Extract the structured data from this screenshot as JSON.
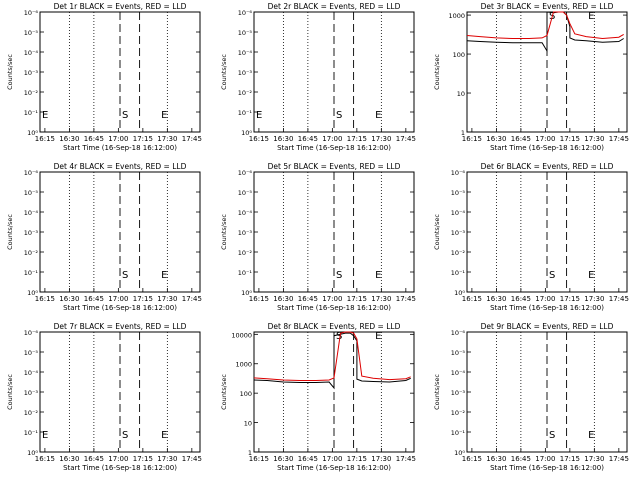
{
  "chart_data": [
    {
      "type": "line",
      "title": "Det 1r BLACK = Events, RED = LLD",
      "xlabel": "Start Time (16-Sep-18 16:12:00)",
      "ylabel": "Counts/sec",
      "xlim": [
        "16:12",
        "17:50"
      ],
      "ylim": [
        0.8,
        1.2
      ],
      "y_scale": "log",
      "y_ticks": [
        "10⁰",
        "10⁻¹",
        "10⁻²",
        "10⁻³",
        "10⁻⁴",
        "10⁻⁵",
        "10⁻⁶"
      ],
      "x_ticks": [
        "16:15",
        "16:30",
        "16:45",
        "17:00",
        "17:15",
        "17:30",
        "17:45"
      ],
      "markers": [
        {
          "label": "E",
          "time": "16:12"
        },
        {
          "label": "S",
          "time": "17:01"
        },
        {
          "label": "E",
          "time": "17:25"
        }
      ],
      "series": []
    },
    {
      "type": "line",
      "title": "Det 2r BLACK = Events, RED = LLD",
      "xlabel": "Start Time (16-Sep-18 16:12:00)",
      "ylabel": "Counts/sec",
      "xlim": [
        "16:12",
        "17:50"
      ],
      "ylim": [
        0.8,
        1.2
      ],
      "y_scale": "log",
      "y_ticks": [
        "10⁰",
        "10⁻¹",
        "10⁻²",
        "10⁻³",
        "10⁻⁴",
        "10⁻⁵",
        "10⁻⁶"
      ],
      "x_ticks": [
        "16:15",
        "16:30",
        "16:45",
        "17:00",
        "17:15",
        "17:30",
        "17:45"
      ],
      "markers": [
        {
          "label": "E",
          "time": "16:12"
        },
        {
          "label": "S",
          "time": "17:01"
        },
        {
          "label": "E",
          "time": "17:25"
        }
      ],
      "series": []
    },
    {
      "type": "line",
      "title": "Det 3r BLACK = Events, RED = LLD",
      "xlabel": "Start Time (16-Sep-18 16:12:00)",
      "ylabel": "Counts/sec",
      "xlim": [
        "16:12",
        "17:50"
      ],
      "ylim": [
        1,
        1200
      ],
      "y_scale": "log",
      "y_ticks": [
        "1",
        "10",
        "100",
        "1000"
      ],
      "x_ticks": [
        "16:15",
        "16:30",
        "16:45",
        "17:00",
        "17:15",
        "17:30",
        "17:45"
      ],
      "markers": [
        {
          "label": "S",
          "time": "17:01"
        },
        {
          "label": "E",
          "time": "17:25"
        }
      ],
      "series": [
        {
          "name": "Events",
          "color": "#000000",
          "x": [
            "16:12",
            "16:20",
            "16:30",
            "16:40",
            "16:50",
            "16:58",
            "17:01",
            "17:01",
            "17:05",
            "17:08",
            "17:11",
            "17:13",
            "17:15",
            "17:15",
            "17:18",
            "17:25",
            "17:35",
            "17:45",
            "17:48"
          ],
          "values": [
            220,
            210,
            200,
            195,
            195,
            195,
            120,
            1200,
            1150,
            1200,
            1200,
            1000,
            500,
            260,
            230,
            220,
            200,
            210,
            250
          ]
        },
        {
          "name": "LLD",
          "color": "#dd0000",
          "x": [
            "16:12",
            "16:20",
            "16:30",
            "16:40",
            "16:50",
            "16:58",
            "17:01",
            "17:05",
            "17:08",
            "17:11",
            "17:13",
            "17:15",
            "17:18",
            "17:25",
            "17:35",
            "17:45",
            "17:48"
          ],
          "values": [
            300,
            280,
            260,
            250,
            250,
            260,
            300,
            1200,
            1200,
            1200,
            1000,
            600,
            330,
            280,
            250,
            270,
            320
          ]
        }
      ]
    },
    {
      "type": "line",
      "title": "Det 4r BLACK = Events, RED = LLD",
      "xlabel": "Start Time (16-Sep-18 16:12:00)",
      "ylabel": "Counts/sec",
      "xlim": [
        "16:12",
        "17:50"
      ],
      "ylim": [
        0.8,
        1.2
      ],
      "y_scale": "log",
      "y_ticks": [
        "10⁰",
        "10⁻¹",
        "10⁻²",
        "10⁻³",
        "10⁻⁴",
        "10⁻⁵",
        "10⁻⁶"
      ],
      "x_ticks": [
        "16:15",
        "16:30",
        "16:45",
        "17:00",
        "17:15",
        "17:30",
        "17:45"
      ],
      "markers": [
        {
          "label": "S",
          "time": "17:01"
        },
        {
          "label": "E",
          "time": "17:25"
        }
      ],
      "series": []
    },
    {
      "type": "line",
      "title": "Det 5r BLACK = Events, RED = LLD",
      "xlabel": "Start Time (16-Sep-18 16:12:00)",
      "ylabel": "Counts/sec",
      "xlim": [
        "16:12",
        "17:50"
      ],
      "ylim": [
        0.8,
        1.2
      ],
      "y_scale": "log",
      "y_ticks": [
        "10⁰",
        "10⁻¹",
        "10⁻²",
        "10⁻³",
        "10⁻⁴",
        "10⁻⁵",
        "10⁻⁶"
      ],
      "x_ticks": [
        "16:15",
        "16:30",
        "16:45",
        "17:00",
        "17:15",
        "17:30",
        "17:45"
      ],
      "markers": [
        {
          "label": "S",
          "time": "17:01"
        },
        {
          "label": "E",
          "time": "17:25"
        }
      ],
      "series": []
    },
    {
      "type": "line",
      "title": "Det 6r BLACK = Events, RED = LLD",
      "xlabel": "Start Time (16-Sep-18 16:12:00)",
      "ylabel": "Counts/sec",
      "xlim": [
        "16:12",
        "17:50"
      ],
      "ylim": [
        0.8,
        1.2
      ],
      "y_scale": "log",
      "y_ticks": [
        "10⁰",
        "10⁻¹",
        "10⁻²",
        "10⁻³",
        "10⁻⁴",
        "10⁻⁵",
        "10⁻⁶"
      ],
      "x_ticks": [
        "16:15",
        "16:30",
        "16:45",
        "17:00",
        "17:15",
        "17:30",
        "17:45"
      ],
      "markers": [
        {
          "label": "S",
          "time": "17:01"
        },
        {
          "label": "E",
          "time": "17:25"
        }
      ],
      "series": []
    },
    {
      "type": "line",
      "title": "Det 7r BLACK = Events, RED = LLD",
      "xlabel": "Start Time (16-Sep-18 16:12:00)",
      "ylabel": "Counts/sec",
      "xlim": [
        "16:12",
        "17:50"
      ],
      "ylim": [
        0.8,
        1.2
      ],
      "y_scale": "log",
      "y_ticks": [
        "10⁰",
        "10⁻¹",
        "10⁻²",
        "10⁻³",
        "10⁻⁴",
        "10⁻⁵",
        "10⁻⁶"
      ],
      "x_ticks": [
        "16:15",
        "16:30",
        "16:45",
        "17:00",
        "17:15",
        "17:30",
        "17:45"
      ],
      "markers": [
        {
          "label": "E",
          "time": "16:12"
        },
        {
          "label": "S",
          "time": "17:01"
        },
        {
          "label": "E",
          "time": "17:25"
        }
      ],
      "series": []
    },
    {
      "type": "line",
      "title": "Det 8r BLACK = Events, RED = LLD",
      "xlabel": "Start Time (16-Sep-18 16:12:00)",
      "ylabel": "Counts/sec",
      "xlim": [
        "16:12",
        "17:50"
      ],
      "ylim": [
        1,
        12000
      ],
      "y_scale": "log",
      "y_ticks": [
        "1",
        "10",
        "100",
        "1000",
        "10000"
      ],
      "x_ticks": [
        "16:15",
        "16:30",
        "16:45",
        "17:00",
        "17:15",
        "17:30",
        "17:45"
      ],
      "markers": [
        {
          "label": "S",
          "time": "17:01"
        },
        {
          "label": "E",
          "time": "17:25"
        }
      ],
      "series": [
        {
          "name": "Events",
          "color": "#000000",
          "x": [
            "16:12",
            "16:20",
            "16:30",
            "16:40",
            "16:50",
            "16:58",
            "17:01",
            "17:01",
            "17:05",
            "17:08",
            "17:11",
            "17:13",
            "17:15",
            "17:15",
            "17:18",
            "17:25",
            "17:35",
            "17:45",
            "17:48"
          ],
          "values": [
            280,
            270,
            240,
            230,
            230,
            240,
            150,
            9000,
            10000,
            11000,
            11000,
            9000,
            6000,
            300,
            260,
            250,
            240,
            270,
            320
          ]
        },
        {
          "name": "LLD",
          "color": "#dd0000",
          "x": [
            "16:12",
            "16:20",
            "16:30",
            "16:40",
            "16:50",
            "16:58",
            "17:01",
            "17:05",
            "17:08",
            "17:11",
            "17:13",
            "17:15",
            "17:18",
            "17:25",
            "17:35",
            "17:45",
            "17:48"
          ],
          "values": [
            330,
            310,
            280,
            270,
            270,
            280,
            330,
            11000,
            12000,
            12000,
            11000,
            7000,
            380,
            320,
            290,
            310,
            360
          ]
        }
      ]
    },
    {
      "type": "line",
      "title": "Det 9r BLACK = Events, RED = LLD",
      "xlabel": "Start Time (16-Sep-18 16:12:00)",
      "ylabel": "Counts/sec",
      "xlim": [
        "16:12",
        "17:50"
      ],
      "ylim": [
        0.8,
        1.2
      ],
      "y_scale": "log",
      "y_ticks": [
        "10⁰",
        "10⁻¹",
        "10⁻²",
        "10⁻³",
        "10⁻⁴",
        "10⁻⁵",
        "10⁻⁶"
      ],
      "x_ticks": [
        "16:15",
        "16:30",
        "16:45",
        "17:00",
        "17:15",
        "17:30",
        "17:45"
      ],
      "markers": [
        {
          "label": "S",
          "time": "17:01"
        },
        {
          "label": "E",
          "time": "17:25"
        }
      ],
      "series": []
    }
  ]
}
